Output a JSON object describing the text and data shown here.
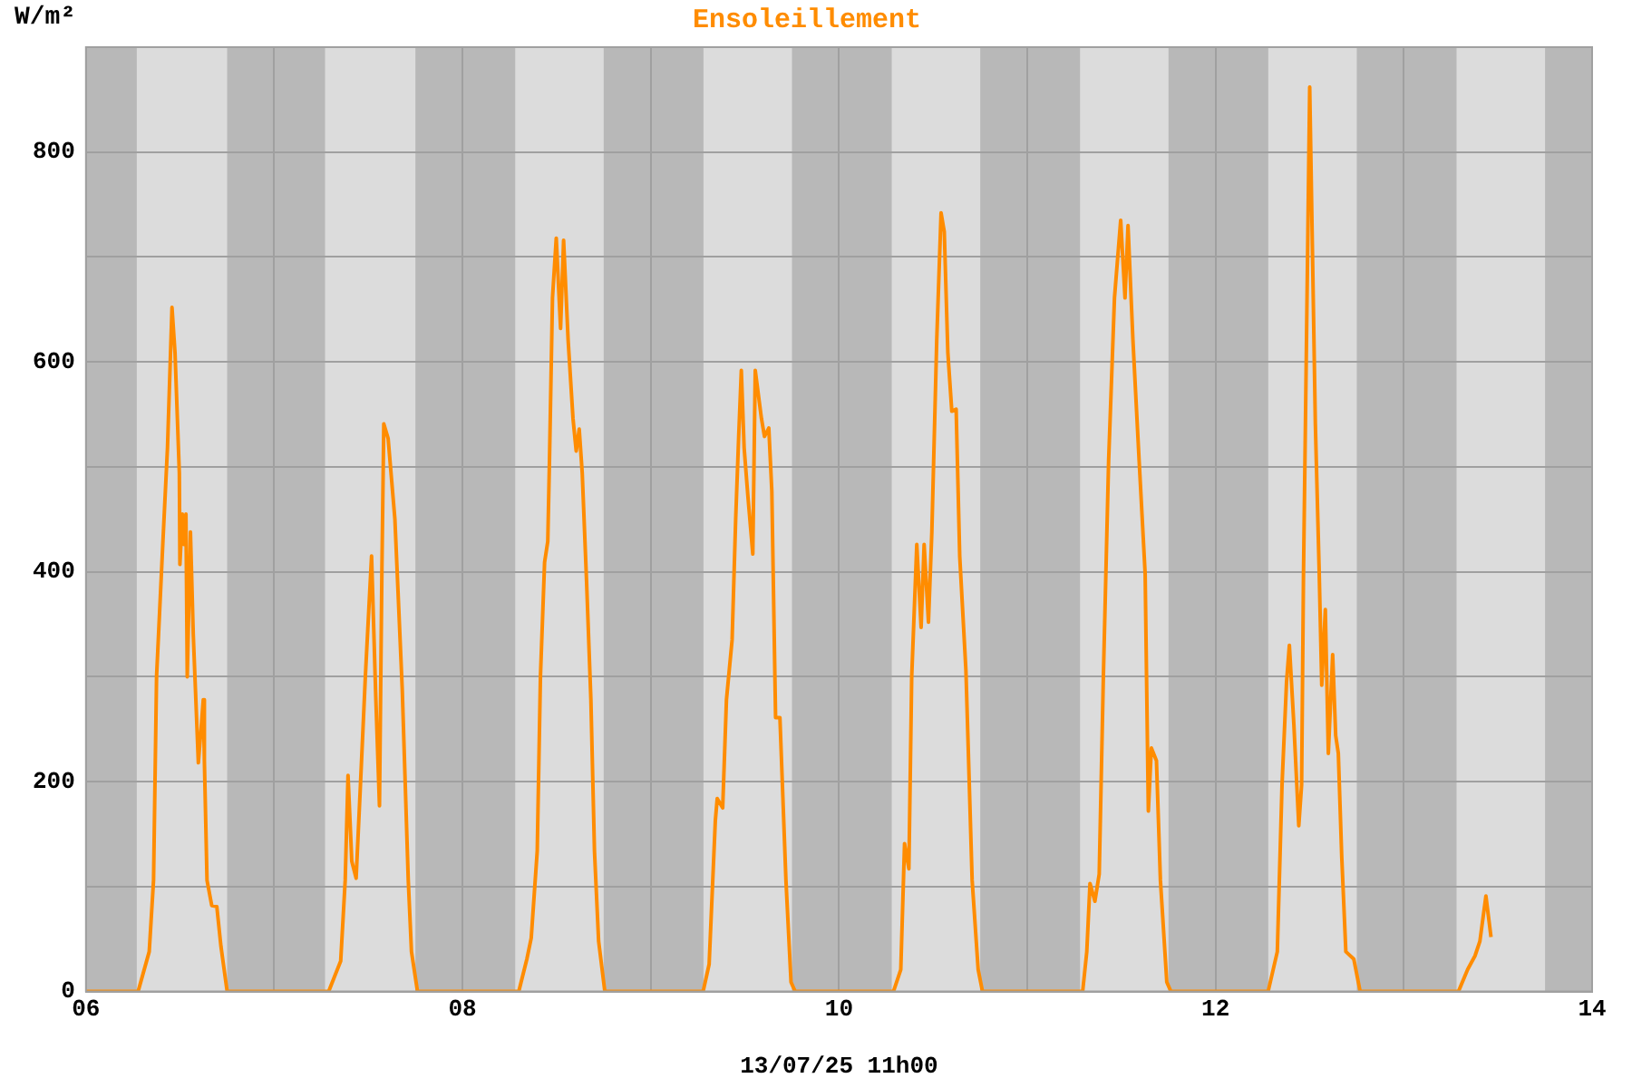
{
  "chart_data": {
    "type": "line",
    "title": "Ensoleillement",
    "ylabel": "W/m²",
    "xlabel": "13/07/25 11h00",
    "xlim": [
      6,
      14
    ],
    "xticks": [
      {
        "value": 6,
        "label": "06"
      },
      {
        "value": 7,
        "label": null
      },
      {
        "value": 8,
        "label": "08"
      },
      {
        "value": 9,
        "label": null
      },
      {
        "value": 10,
        "label": "10"
      },
      {
        "value": 11,
        "label": null
      },
      {
        "value": 12,
        "label": "12"
      },
      {
        "value": 13,
        "label": null
      },
      {
        "value": 14,
        "label": "14"
      }
    ],
    "ylim": [
      0,
      900
    ],
    "yticks": [
      0,
      {
        "value": 100,
        "label": null
      },
      200,
      {
        "value": 300,
        "label": null
      },
      400,
      {
        "value": 500,
        "label": null
      },
      600,
      {
        "value": 700,
        "label": null
      },
      800,
      {
        "value": 900,
        "label": null
      }
    ],
    "grid": true,
    "legend": false,
    "bands": [
      {
        "axis": "x",
        "from": 6,
        "to": 6.27,
        "color": "#b8b8b8"
      },
      {
        "axis": "x",
        "from": 6.75,
        "to": 7.27,
        "color": "#b8b8b8"
      },
      {
        "axis": "x",
        "from": 7.75,
        "to": 8.28,
        "color": "#b8b8b8"
      },
      {
        "axis": "x",
        "from": 8.75,
        "to": 9.28,
        "color": "#b8b8b8"
      },
      {
        "axis": "x",
        "from": 9.75,
        "to": 10.28,
        "color": "#b8b8b8"
      },
      {
        "axis": "x",
        "from": 10.75,
        "to": 11.28,
        "color": "#b8b8b8"
      },
      {
        "axis": "x",
        "from": 11.75,
        "to": 12.28,
        "color": "#b8b8b8"
      },
      {
        "axis": "x",
        "from": 12.75,
        "to": 13.28,
        "color": "#b8b8b8"
      },
      {
        "axis": "x",
        "from": 13.75,
        "to": 14,
        "color": "#b8b8b8"
      }
    ],
    "series": [
      {
        "color": "#ff8c00",
        "x": [
          6,
          6.277,
          6.336,
          6.359,
          6.375,
          6.408,
          6.433,
          6.457,
          6.473,
          6.496,
          6.499,
          6.512,
          6.522,
          6.531,
          6.538,
          6.555,
          6.57,
          6.597,
          6.613,
          6.623,
          6.629,
          6.643,
          6.668,
          6.695,
          6.717,
          6.75,
          7.289,
          7.353,
          7.377,
          7.392,
          7.412,
          7.435,
          7.458,
          7.484,
          7.517,
          7.539,
          7.559,
          7.572,
          7.582,
          7.605,
          7.641,
          7.68,
          7.712,
          7.729,
          7.761,
          8.299,
          8.342,
          8.365,
          8.397,
          8.414,
          8.436,
          8.453,
          8.462,
          8.478,
          8.498,
          8.521,
          8.537,
          8.561,
          8.587,
          8.604,
          8.62,
          8.636,
          8.659,
          8.682,
          8.701,
          8.723,
          8.756,
          9.278,
          9.31,
          9.343,
          9.353,
          9.382,
          9.402,
          9.432,
          9.451,
          9.467,
          9.481,
          9.496,
          9.516,
          9.542,
          9.555,
          9.588,
          9.604,
          9.627,
          9.643,
          9.663,
          9.686,
          9.718,
          9.745,
          9.767,
          10.289,
          10.328,
          10.348,
          10.371,
          10.386,
          10.413,
          10.436,
          10.452,
          10.475,
          10.493,
          10.519,
          10.542,
          10.559,
          10.578,
          10.599,
          10.622,
          10.641,
          10.674,
          10.707,
          10.739,
          10.762,
          11.294,
          11.316,
          11.333,
          11.359,
          11.382,
          11.404,
          11.432,
          11.463,
          11.496,
          11.519,
          11.535,
          11.561,
          11.594,
          11.626,
          11.643,
          11.659,
          11.686,
          11.707,
          11.741,
          11.763,
          12.279,
          12.328,
          12.353,
          12.377,
          12.392,
          12.416,
          12.442,
          12.457,
          12.467,
          12.485,
          12.5,
          12.514,
          12.53,
          12.55,
          12.564,
          12.583,
          12.599,
          12.622,
          12.638,
          12.652,
          12.67,
          12.692,
          12.734,
          12.768,
          13.29,
          13.339,
          13.378,
          13.404,
          13.436,
          13.463
        ],
        "values": [
          0,
          0,
          38,
          106,
          300,
          426,
          518,
          652,
          609,
          494,
          407,
          455,
          426,
          455,
          300,
          438,
          340,
          218,
          254,
          278,
          220,
          106,
          82,
          81,
          43,
          0,
          0,
          29,
          106,
          206,
          124,
          108,
          197,
          300,
          415,
          283,
          177,
          403,
          541,
          527,
          450,
          288,
          106,
          38,
          0,
          0,
          31,
          51,
          134,
          300,
          409,
          429,
          506,
          661,
          718,
          632,
          716,
          621,
          546,
          515,
          536,
          494,
          391,
          278,
          134,
          48,
          0,
          0,
          26,
          163,
          184,
          175,
          278,
          335,
          450,
          529,
          592,
          518,
          472,
          417,
          592,
          546,
          529,
          537,
          477,
          261,
          261,
          106,
          9,
          0,
          0,
          21,
          141,
          117,
          300,
          426,
          347,
          426,
          352,
          438,
          621,
          742,
          724,
          609,
          553,
          555,
          415,
          306,
          106,
          21,
          0,
          0,
          38,
          103,
          86,
          112,
          300,
          506,
          661,
          735,
          661,
          730,
          621,
          506,
          398,
          172,
          232,
          220,
          106,
          9,
          0,
          0,
          38,
          197,
          295,
          330,
          254,
          158,
          197,
          398,
          649,
          862,
          712,
          541,
          403,
          292,
          364,
          227,
          321,
          244,
          227,
          129,
          38,
          31,
          0,
          0,
          21,
          34,
          48,
          91,
          52
        ]
      }
    ]
  }
}
